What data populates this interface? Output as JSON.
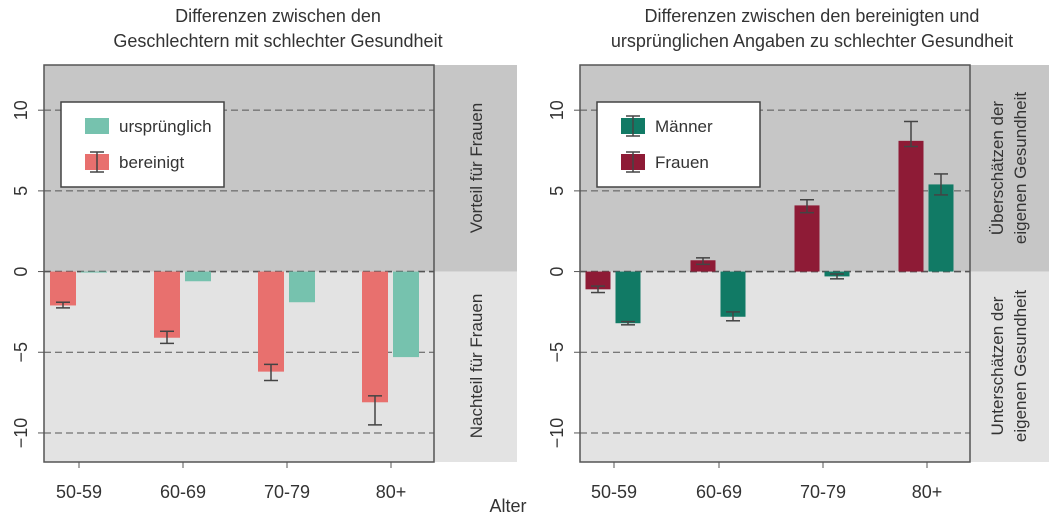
{
  "colors": {
    "bg_top": "#c6c6c6",
    "bg_bottom": "#e3e3e3",
    "urspruenglich": "#76c2ae",
    "bereinigt": "#e8706e",
    "maenner": "#117a65",
    "frauen": "#8e1b36",
    "error_bar": "#444444",
    "grid": "#555555"
  },
  "shared": {
    "x_label": "Alter",
    "y_tick_labels": [
      "10",
      "5",
      "0",
      "−5",
      "−10"
    ]
  },
  "chart_data": [
    {
      "type": "bar",
      "title_line1": "Differenzen zwischen den",
      "title_line2": "Geschlechtern mit schlechter Gesundheit",
      "categories": [
        "50-59",
        "60-69",
        "70-79",
        "80+"
      ],
      "ylim": [
        -11.8,
        12.8
      ],
      "yticks": [
        10,
        5,
        0,
        -5,
        -10
      ],
      "grid": "dashed horizontal",
      "legend_placement": "top-left",
      "series": [
        {
          "name": "bereinigt",
          "values": [
            -2.1,
            -4.1,
            -6.2,
            -8.1
          ],
          "errors": [
            [
              -2.25,
              -1.9
            ],
            [
              -4.45,
              -3.7
            ],
            [
              -6.75,
              -5.75
            ],
            [
              -9.5,
              -7.7
            ]
          ]
        },
        {
          "name": "ursprünglich",
          "values": [
            -0.05,
            -0.6,
            -1.9,
            -5.3
          ]
        }
      ],
      "side_labels": {
        "top": "Vorteil für Frauen",
        "bottom": "Nachteil für Frauen"
      }
    },
    {
      "type": "bar",
      "title_line1": "Differenzen zwischen den bereinigten und",
      "title_line2": "ursprünglichen Angaben zu schlechter Gesundheit",
      "categories": [
        "50-59",
        "60-69",
        "70-79",
        "80+"
      ],
      "ylim": [
        -11.8,
        12.8
      ],
      "yticks": [
        10,
        5,
        0,
        -5,
        -10
      ],
      "grid": "dashed horizontal",
      "legend_placement": "top-left",
      "series": [
        {
          "name": "Frauen",
          "values": [
            -1.1,
            0.7,
            4.1,
            8.1
          ],
          "errors": [
            [
              -1.3,
              -0.9
            ],
            [
              0.45,
              0.85
            ],
            [
              3.65,
              4.45
            ],
            [
              7.75,
              9.3
            ]
          ]
        },
        {
          "name": "Männer",
          "values": [
            -3.2,
            -2.8,
            -0.3,
            5.4
          ],
          "errors": [
            [
              -3.3,
              -3.1
            ],
            [
              -3.05,
              -2.5
            ],
            [
              -0.45,
              -0.15
            ],
            [
              4.75,
              6.05
            ]
          ]
        }
      ],
      "side_labels": {
        "top_line1": "Überschätzen der",
        "top_line2": "eigenen Gesundheit",
        "bottom_line1": "Unterschätzen der",
        "bottom_line2": "eigenen Gesundheit"
      }
    }
  ]
}
